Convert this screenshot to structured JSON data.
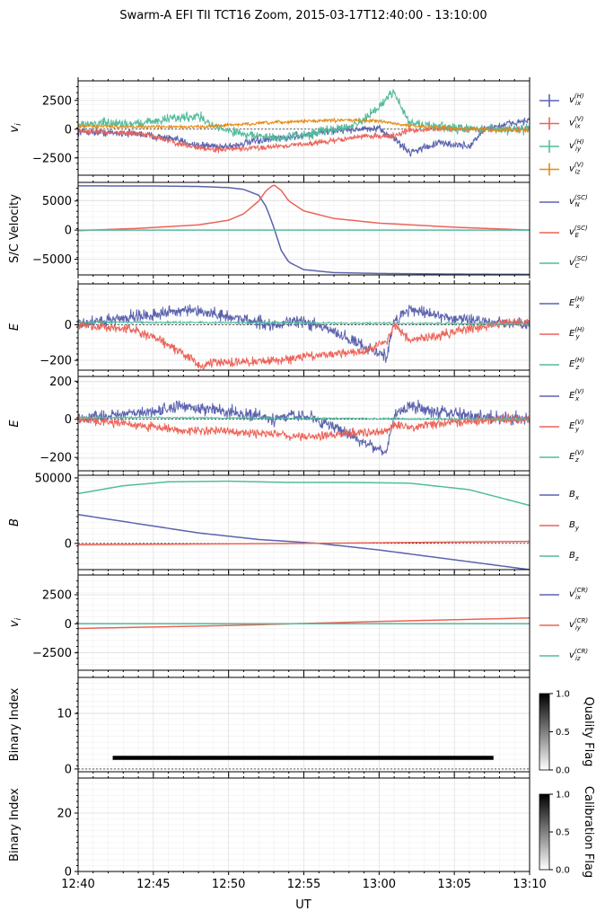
{
  "title": "Swarm-A EFI TII TCT16 Zoom, 2015-03-17T12:40:00 - 13:10:00",
  "xlabel": "UT",
  "colors": {
    "blue": "#5b63ae",
    "red": "#ec6358",
    "teal": "#52bc9c",
    "orange": "#e58a12",
    "black": "#000000",
    "axis": "#000000",
    "grid": "#d8d8d8"
  },
  "chart_data": {
    "type": "line",
    "x_range": [
      "12:40",
      "13:10"
    ],
    "x_ticks": [
      "12:40",
      "12:45",
      "12:50",
      "12:55",
      "13:00",
      "13:05",
      "13:10"
    ],
    "panels": [
      {
        "ylabel": "v_i",
        "ylim": [
          -4000,
          4200
        ],
        "ticks": [
          -2500,
          0,
          2500
        ],
        "tick_labels": [
          "−2500",
          "0",
          "2500"
        ],
        "legend": [
          "v_ix^(H)",
          "v_ix^(V)",
          "v_iy^(H)",
          "v_iz^(V)"
        ],
        "legend_style": "errorbar",
        "series": [
          {
            "name": "v_ix^(H)",
            "color": "blue",
            "noise": 280,
            "x": [
              0,
              4,
              6,
              8,
              10,
              12,
              14,
              16,
              18,
              20,
              21,
              22,
              24,
              26,
              27,
              28,
              30
            ],
            "y": [
              -200,
              -400,
              -800,
              -1400,
              -1500,
              -1000,
              -700,
              -300,
              0,
              0,
              -800,
              -2000,
              -1200,
              -1500,
              0,
              300,
              800
            ]
          },
          {
            "name": "v_ix^(V)",
            "color": "red",
            "noise": 200,
            "x": [
              0,
              3,
              5,
              7,
              9,
              11,
              13,
              15,
              17,
              19,
              21,
              22,
              24,
              26,
              28,
              30
            ],
            "y": [
              -200,
              -300,
              -600,
              -1400,
              -1800,
              -1700,
              -1500,
              -1300,
              -1000,
              -600,
              -600,
              -100,
              0,
              0,
              0,
              0
            ]
          },
          {
            "name": "v_iy^(H)",
            "color": "teal",
            "noise": 350,
            "x": [
              0,
              2,
              4,
              6,
              8,
              9,
              11,
              13,
              15,
              17,
              19,
              20,
              21,
              22,
              24,
              26,
              28,
              30
            ],
            "y": [
              400,
              500,
              500,
              900,
              1200,
              200,
              -400,
              -800,
              -500,
              0,
              700,
              2000,
              3300,
              500,
              200,
              0,
              0,
              0
            ]
          },
          {
            "name": "v_iz^(V)",
            "color": "orange",
            "noise": 120,
            "x": [
              0,
              4,
              8,
              12,
              15,
              18,
              20,
              22,
              26,
              30
            ],
            "y": [
              300,
              200,
              200,
              500,
              700,
              800,
              700,
              300,
              0,
              -100
            ]
          }
        ]
      },
      {
        "ylabel": "S/C Velocity",
        "ylim": [
          -7700,
          8200
        ],
        "ticks": [
          -5000,
          0,
          5000
        ],
        "tick_labels": [
          "−5000",
          "0",
          "5000"
        ],
        "legend": [
          "v_N^(SC)",
          "v_E^(SC)",
          "v_C^(SC)"
        ],
        "legend_style": "line",
        "series": [
          {
            "name": "v_N^(SC)",
            "color": "blue",
            "noise": 0,
            "x": [
              0,
              5,
              8,
              10,
              11,
              12,
              12.5,
              13,
              13.5,
              14,
              15,
              17,
              20,
              25,
              30
            ],
            "y": [
              7600,
              7580,
              7500,
              7300,
              7000,
              6000,
              4000,
              500,
              -3500,
              -5500,
              -6800,
              -7300,
              -7450,
              -7550,
              -7600
            ]
          },
          {
            "name": "v_E^(SC)",
            "color": "red",
            "noise": 0,
            "x": [
              0,
              4,
              8,
              10,
              11,
              12,
              12.5,
              13,
              13.5,
              14,
              15,
              17,
              20,
              25,
              30
            ],
            "y": [
              -100,
              300,
              900,
              1700,
              2800,
              5000,
              6800,
              7800,
              6800,
              5000,
              3300,
              2000,
              1200,
              500,
              0
            ]
          },
          {
            "name": "v_C^(SC)",
            "color": "teal",
            "noise": 0,
            "x": [
              0,
              30
            ],
            "y": [
              0,
              0
            ]
          }
        ]
      },
      {
        "ylabel": "E",
        "ylim": [
          -255,
          230
        ],
        "ticks": [
          -200,
          0
        ],
        "tick_labels": [
          "−200",
          "0"
        ],
        "legend": [
          "E_x^(H)",
          "E_y^(H)",
          "E_z^(H)"
        ],
        "legend_style": "line",
        "series": [
          {
            "name": "E_x^(H)",
            "color": "blue",
            "noise": 30,
            "x": [
              0,
              3,
              5,
              7,
              9,
              11,
              13,
              15,
              17,
              19,
              20.5,
              21,
              22,
              24,
              26,
              28,
              30
            ],
            "y": [
              0,
              40,
              60,
              80,
              60,
              30,
              0,
              20,
              -40,
              -120,
              -180,
              20,
              90,
              50,
              30,
              10,
              0
            ]
          },
          {
            "name": "E_y^(H)",
            "color": "red",
            "noise": 22,
            "x": [
              0,
              3,
              5,
              7,
              8,
              9,
              11,
              13,
              15,
              17,
              19,
              20.5,
              21,
              22,
              24,
              26,
              28,
              30
            ],
            "y": [
              0,
              -20,
              -70,
              -160,
              -230,
              -215,
              -210,
              -200,
              -180,
              -160,
              -150,
              -90,
              0,
              -90,
              -60,
              -20,
              10,
              20
            ]
          },
          {
            "name": "E_z^(H)",
            "color": "teal",
            "noise": 5,
            "x": [
              0,
              30
            ],
            "y": [
              15,
              5
            ]
          }
        ]
      },
      {
        "ylabel": "E",
        "ylim": [
          -270,
          225
        ],
        "ticks": [
          -200,
          0,
          200
        ],
        "tick_labels": [
          "−200",
          "0",
          "200"
        ],
        "legend": [
          "E_x^(V)",
          "E_y^(V)",
          "E_z^(V)"
        ],
        "legend_style": "line",
        "series": [
          {
            "name": "E_x^(V)",
            "color": "blue",
            "noise": 28,
            "x": [
              0,
              3,
              5,
              7,
              9,
              11,
              13,
              15,
              17,
              19,
              20.5,
              21,
              22,
              24,
              26,
              28,
              30
            ],
            "y": [
              0,
              30,
              40,
              70,
              50,
              30,
              0,
              20,
              -40,
              -120,
              -170,
              30,
              70,
              40,
              20,
              10,
              0
            ]
          },
          {
            "name": "E_y^(V)",
            "color": "red",
            "noise": 20,
            "x": [
              0,
              3,
              5,
              7,
              9,
              11,
              13,
              15,
              17,
              19,
              20.5,
              21,
              22,
              24,
              26,
              28,
              30
            ],
            "y": [
              0,
              -20,
              -40,
              -60,
              -60,
              -70,
              -80,
              -90,
              -80,
              -70,
              -60,
              -30,
              -40,
              -20,
              -10,
              0,
              0
            ]
          },
          {
            "name": "E_z^(V)",
            "color": "teal",
            "noise": 4,
            "x": [
              0,
              30
            ],
            "y": [
              10,
              0
            ]
          }
        ]
      },
      {
        "ylabel": "B",
        "ylim": [
          -20000,
          52000
        ],
        "ticks": [
          0,
          50000
        ],
        "tick_labels": [
          "0",
          "50000"
        ],
        "legend": [
          "B_x",
          "B_y",
          "B_z"
        ],
        "legend_style": "line",
        "series": [
          {
            "name": "B_x",
            "color": "blue",
            "noise": 0,
            "x": [
              0,
              4,
              8,
              12,
              16,
              20,
              24,
              30
            ],
            "y": [
              22000,
              15000,
              8000,
              3000,
              0,
              -5000,
              -11000,
              -20000
            ]
          },
          {
            "name": "B_y",
            "color": "red",
            "noise": 0,
            "x": [
              0,
              15,
              30
            ],
            "y": [
              -1000,
              0,
              1500
            ]
          },
          {
            "name": "B_z",
            "color": "teal",
            "noise": 0,
            "x": [
              0,
              3,
              6,
              10,
              14,
              18,
              22,
              26,
              30
            ],
            "y": [
              38000,
              44000,
              47000,
              47500,
              46500,
              46500,
              46000,
              41000,
              29000
            ]
          }
        ]
      },
      {
        "ylabel": "v_i",
        "ylim": [
          -4000,
          4200
        ],
        "ticks": [
          -2500,
          0,
          2500
        ],
        "tick_labels": [
          "−2500",
          "0",
          "2500"
        ],
        "legend": [
          "v_ix^(CR)",
          "v_iy^(CR)",
          "v_iz^(CR)"
        ],
        "legend_style": "line",
        "series": [
          {
            "name": "v_iy^(CR)",
            "color": "red",
            "noise": 0,
            "x": [
              0,
              10,
              20,
              30
            ],
            "y": [
              -400,
              -150,
              200,
              500
            ]
          },
          {
            "name": "v_ix^(CR)",
            "color": "blue",
            "noise": 0,
            "x": [
              0,
              30
            ],
            "y": [
              0,
              0
            ]
          },
          {
            "name": "v_iz^(CR)",
            "color": "teal",
            "noise": 0,
            "x": [
              0,
              30
            ],
            "y": [
              0,
              0
            ]
          }
        ]
      },
      {
        "ylabel": "Binary Index",
        "ylim": [
          -0.5,
          16.5
        ],
        "ticks": [
          0,
          10
        ],
        "tick_labels": [
          "0",
          "10"
        ],
        "colorbar": {
          "label": "Quality Flag",
          "ticks": [
            "0.0",
            "0.5",
            "1.0"
          ]
        },
        "flag_segments": [
          {
            "x0": 2.3,
            "x1": 27.6,
            "y": 2,
            "value": 1.0
          }
        ]
      },
      {
        "ylabel": "Binary Index",
        "ylim": [
          0,
          32
        ],
        "ticks": [
          0,
          20
        ],
        "tick_labels": [
          "0",
          "20"
        ],
        "colorbar": {
          "label": "Calibration Flag",
          "ticks": [
            "0.0",
            "0.5",
            "1.0"
          ]
        },
        "flag_segments": []
      }
    ]
  }
}
